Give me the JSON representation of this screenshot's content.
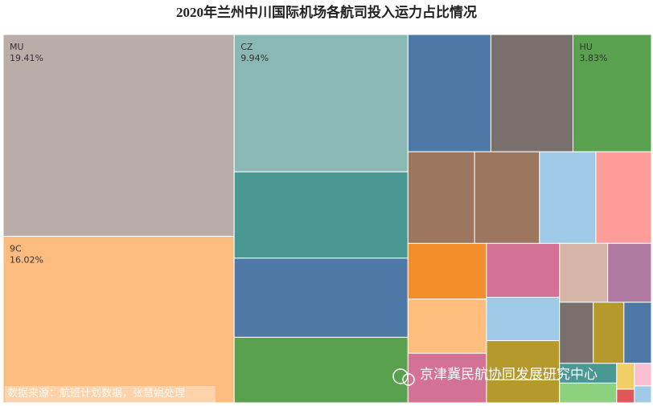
{
  "chart_data": {
    "type": "treemap",
    "title": "2020年兰州中川国际机场各航司投入运力占比情况",
    "categories": [
      "MU",
      "9C",
      "CZ",
      null,
      null,
      null,
      null,
      null,
      "HU",
      null,
      null,
      null,
      null,
      null,
      null,
      null,
      null,
      null,
      null,
      null,
      null,
      null,
      null,
      null,
      null,
      null,
      null,
      null,
      null,
      null,
      null
    ],
    "values": [
      19.41,
      16.02,
      9.94,
      6.25,
      5.73,
      4.74,
      4.05,
      4.01,
      3.83,
      2.54,
      2.48,
      2.15,
      2.12,
      1.82,
      1.77,
      1.62,
      1.64,
      1.32,
      1.19,
      0.7,
      1.18,
      1.07,
      0.86,
      0.78,
      0.7,
      0.47,
      0.47,
      0.19,
      0.1,
      0.16,
      0.12
    ],
    "value_labels": [
      "19.41%",
      "16.02%",
      "9.94%",
      null,
      null,
      null,
      null,
      null,
      "3.83%",
      null,
      null,
      null,
      null,
      null,
      null,
      null,
      null,
      null,
      null,
      null,
      null,
      null,
      null,
      null,
      null,
      null,
      null,
      null,
      null,
      null,
      null
    ],
    "colors": [
      "#b9aca9",
      "#fdbc7f",
      "#8ab9b3",
      "#499893",
      "#4e79a7",
      "#59a14f",
      "#4e79a7",
      "#79706e",
      "#59a14f",
      "#9d7660",
      "#9d7660",
      "#a0cbe8",
      "#ff9d9a",
      "#f28e2b",
      "#ffbe7d",
      "#d37295",
      "#d37295",
      "#a0cbe8",
      "#b6992d",
      "#b6992d",
      "#d7b5a6",
      "#b07aa1",
      "#79706e",
      "#b6992d",
      "#4e79a7",
      "#499893",
      "#8cd17d",
      "#f1ce63",
      "#e15759",
      "#fabfd2",
      "#a0cbe8"
    ],
    "source": "数据来源：航班计划数据，张慧娟处理",
    "watermark": "京津冀民航协同发展研究中心"
  }
}
